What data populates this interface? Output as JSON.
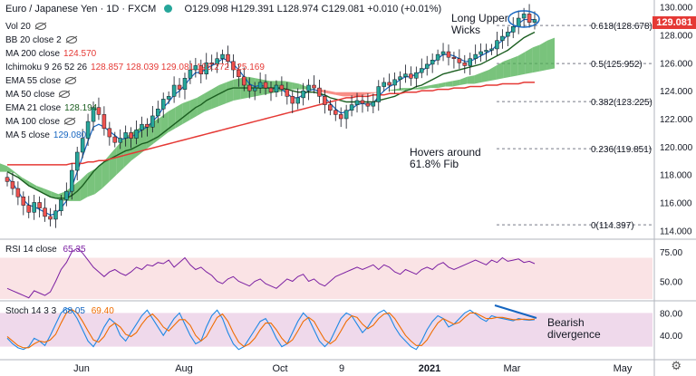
{
  "header": {
    "symbol": "Euro / Japanese Yen · 1D · FXCM",
    "ohlc": "O129.098 H129.391 L128.974 C129.081 +0.010 (+0.01%)"
  },
  "legend": [
    {
      "label": "Vol 20",
      "value": "",
      "color": "#131722",
      "hidden": true
    },
    {
      "label": "BB 20 close 2",
      "value": "",
      "color": "#131722",
      "hidden": true
    },
    {
      "label": "MA 200 close",
      "value": "124.570",
      "color": "#e53935",
      "hidden": false
    },
    {
      "label": "Ichimoku 9 26 52 26",
      "value": "128.857  128.039  129.081  126.272  125.169",
      "color": "#e53935",
      "hidden": false
    },
    {
      "label": "EMA 55 close",
      "value": "",
      "color": "#131722",
      "hidden": true
    },
    {
      "label": "MA 50 close",
      "value": "",
      "color": "#131722",
      "hidden": true
    },
    {
      "label": "EMA 21 close",
      "value": "128.194",
      "color": "#1b5e20",
      "hidden": false
    },
    {
      "label": "MA 100 close",
      "value": "",
      "color": "#131722",
      "hidden": true
    },
    {
      "label": "MA 5 close",
      "value": "129.080",
      "color": "#1565c0",
      "hidden": false
    }
  ],
  "annotations": {
    "upper_wicks": "Long Upper\nWicks",
    "fib_hover": "Hovers around\n61.8% Fib",
    "divergence": "Bearish\ndivergence"
  },
  "rsi_legend": {
    "label": "RSI 14 close",
    "value": "65.35"
  },
  "stoch_legend": {
    "label": "Stoch 14 3 3",
    "k": "68.05",
    "d": "69.40"
  },
  "price_tag": "129.081",
  "chart_data": {
    "type": "line",
    "title": "Euro / Japanese Yen · 1D · FXCM",
    "price_axis": {
      "min": 113.5,
      "max": 130.5,
      "ticks": [
        114,
        116,
        118,
        120,
        122,
        124,
        126,
        128,
        130
      ]
    },
    "rsi_axis": {
      "min": 35,
      "max": 85,
      "ticks": [
        50,
        75
      ],
      "bands": [
        30,
        70
      ]
    },
    "stoch_axis": {
      "min": 0,
      "max": 100,
      "ticks": [
        40,
        80
      ],
      "bands": [
        20,
        80
      ]
    },
    "x_labels": [
      "Jun",
      "Aug",
      "Oct",
      "9",
      "2021",
      "Mar",
      "May"
    ],
    "fib_levels": [
      {
        "ratio": "0.618",
        "price": 128.678
      },
      {
        "ratio": "0.5",
        "price": 125.952
      },
      {
        "ratio": "0.382",
        "price": 123.225
      },
      {
        "ratio": "0.236",
        "price": 119.851
      },
      {
        "ratio": "0",
        "price": 114.397
      }
    ],
    "price_series": [
      {
        "name": "Close",
        "values": [
          117.5,
          117.0,
          116.4,
          115.8,
          115.3,
          116.0,
          115.6,
          115.0,
          114.8,
          115.4,
          116.2,
          116.8,
          118.3,
          119.6,
          120.6,
          121.8,
          122.8,
          122.3,
          121.3,
          120.7,
          120.3,
          120.6,
          121.0,
          120.6,
          121.2,
          121.6,
          121.4,
          122.2,
          122.7,
          123.4,
          123.6,
          124.4,
          124.1,
          124.9,
          125.5,
          125.8,
          125.2,
          126.0,
          125.9,
          126.3,
          126.6,
          126.1,
          125.5,
          125.0,
          124.4,
          124.0,
          124.2,
          124.6,
          124.2,
          123.9,
          124.4,
          124.1,
          123.6,
          123.1,
          123.5,
          124.0,
          124.4,
          124.2,
          123.6,
          123.0,
          122.6,
          122.3,
          122.0,
          122.6,
          123.0,
          123.3,
          123.1,
          122.9,
          123.2,
          124.3,
          124.6,
          124.4,
          124.8,
          125.0,
          125.2,
          124.9,
          125.3,
          125.6,
          125.9,
          126.2,
          126.6,
          126.8,
          126.4,
          126.3,
          126.0,
          125.8,
          126.3,
          126.6,
          126.8,
          126.9,
          127.0,
          127.6,
          127.9,
          128.2,
          128.6,
          129.2,
          129.5,
          128.9,
          129.1
        ]
      },
      {
        "name": "MA 5",
        "values": [
          117.8,
          117.4,
          116.8,
          116.2,
          115.8,
          115.7,
          115.5,
          115.3,
          115.1,
          115.2,
          115.6,
          116.1,
          117.1,
          118.2,
          119.3,
          120.4,
          121.4,
          121.6,
          121.4,
          121.1,
          120.8,
          120.5,
          120.6,
          120.7,
          120.9,
          121.2,
          121.4,
          121.8,
          122.2,
          122.8,
          123.2,
          123.7,
          124.0,
          124.4,
          124.9,
          125.3,
          125.3,
          125.6,
          125.8,
          126.0,
          126.3,
          126.2,
          125.9,
          125.5,
          125.0,
          124.5,
          124.3,
          124.4,
          124.3,
          124.1,
          124.2,
          124.1,
          123.8,
          123.5,
          123.5,
          123.7,
          124.0,
          124.1,
          123.9,
          123.5,
          123.1,
          122.7,
          122.4,
          122.5,
          122.7,
          123.0,
          123.1,
          123.0,
          123.1,
          123.6,
          124.0,
          124.3,
          124.5,
          124.8,
          125.0,
          125.0,
          125.2,
          125.4,
          125.7,
          126.0,
          126.3,
          126.6,
          126.6,
          126.5,
          126.3,
          126.1,
          126.1,
          126.3,
          126.5,
          126.7,
          126.9,
          127.3,
          127.6,
          128.0,
          128.4,
          128.8,
          129.1,
          129.1,
          129.1
        ]
      },
      {
        "name": "EMA 21",
        "values": [
          118.2,
          118.0,
          117.8,
          117.5,
          117.2,
          117.0,
          116.8,
          116.6,
          116.4,
          116.3,
          116.3,
          116.3,
          116.5,
          116.8,
          117.2,
          117.7,
          118.2,
          118.6,
          118.9,
          119.1,
          119.3,
          119.5,
          119.7,
          119.8,
          120.0,
          120.2,
          120.3,
          120.5,
          120.7,
          121.0,
          121.3,
          121.6,
          121.9,
          122.2,
          122.5,
          122.8,
          123.0,
          123.3,
          123.5,
          123.7,
          123.9,
          124.1,
          124.2,
          124.2,
          124.2,
          124.2,
          124.2,
          124.2,
          124.2,
          124.2,
          124.2,
          124.2,
          124.1,
          124.0,
          123.9,
          123.9,
          123.9,
          123.9,
          123.8,
          123.7,
          123.5,
          123.4,
          123.3,
          123.2,
          123.2,
          123.2,
          123.2,
          123.2,
          123.2,
          123.3,
          123.4,
          123.5,
          123.6,
          123.8,
          124.0,
          124.1,
          124.3,
          124.4,
          124.6,
          124.8,
          125.0,
          125.2,
          125.3,
          125.4,
          125.5,
          125.6,
          125.7,
          125.8,
          125.9,
          126.1,
          126.3,
          126.5,
          126.7,
          126.9,
          127.2,
          127.5,
          127.8,
          128.0,
          128.2
        ]
      },
      {
        "name": "MA 200",
        "values": [
          118.7,
          118.7,
          118.7,
          118.7,
          118.7,
          118.7,
          118.7,
          118.7,
          118.7,
          118.7,
          118.7,
          118.7,
          118.8,
          118.8,
          118.8,
          118.9,
          118.9,
          119.0,
          119.0,
          119.1,
          119.2,
          119.3,
          119.4,
          119.5,
          119.6,
          119.7,
          119.8,
          119.9,
          120.0,
          120.1,
          120.2,
          120.3,
          120.4,
          120.5,
          120.6,
          120.7,
          120.8,
          120.9,
          121.0,
          121.1,
          121.2,
          121.3,
          121.4,
          121.5,
          121.6,
          121.7,
          121.8,
          121.9,
          122.0,
          122.1,
          122.2,
          122.3,
          122.4,
          122.5,
          122.6,
          122.7,
          122.8,
          122.9,
          123.0,
          123.1,
          123.2,
          123.3,
          123.4,
          123.5,
          123.5,
          123.6,
          123.6,
          123.6,
          123.7,
          123.7,
          123.7,
          123.8,
          123.8,
          123.8,
          123.9,
          123.9,
          123.9,
          124.0,
          124.0,
          124.0,
          124.1,
          124.1,
          124.1,
          124.2,
          124.2,
          124.2,
          124.3,
          124.3,
          124.3,
          124.4,
          124.4,
          124.4,
          124.5,
          124.5,
          124.5,
          124.5,
          124.6,
          124.6,
          124.6
        ]
      }
    ],
    "cloud": {
      "span_a": [
        118.8,
        118.6,
        118.2,
        117.8,
        117.5,
        117.2,
        117.0,
        116.8,
        116.6,
        116.8,
        117.2,
        117.6,
        118.1,
        118.4,
        118.8,
        119.4,
        120.0,
        120.6,
        121.0,
        121.3,
        121.5,
        121.8,
        122.1,
        122.5,
        122.8,
        123.1,
        123.3,
        123.5,
        123.8,
        124.1,
        124.4,
        124.6,
        124.8,
        124.9,
        125.0,
        124.9,
        124.8,
        124.7,
        124.7,
        124.7,
        124.6,
        124.5,
        124.3,
        124.1,
        123.9,
        123.8,
        123.7,
        123.6,
        123.6,
        123.6,
        123.7,
        123.8,
        123.9,
        124.0,
        124.1,
        124.2,
        124.2,
        124.2,
        124.3,
        124.4,
        124.5,
        124.6,
        124.7,
        124.8,
        125.0,
        125.1,
        125.3,
        125.5,
        125.8,
        126.1,
        126.3,
        126.5,
        126.8,
        127.1,
        127.3,
        127.6,
        127.8
      ],
      "span_b": [
        118.2,
        118.2,
        118.1,
        117.6,
        117.2,
        116.9,
        116.6,
        116.4,
        116.2,
        116.1,
        116.1,
        116.1,
        116.4,
        116.6,
        117.0,
        117.5,
        118.0,
        118.5,
        119.0,
        119.4,
        119.8,
        120.2,
        120.6,
        121.0,
        121.3,
        121.6,
        121.9,
        122.2,
        122.5,
        122.7,
        122.9,
        123.1,
        123.3,
        123.4,
        123.5,
        123.6,
        123.7,
        123.8,
        123.9,
        124.0,
        124.1,
        124.1,
        124.1,
        124.1,
        124.1,
        124.0,
        123.9,
        123.9,
        123.9,
        123.9,
        123.9,
        123.9,
        123.9,
        124.0,
        124.0,
        124.0,
        124.1,
        124.1,
        124.1,
        124.2,
        124.2,
        124.3,
        124.3,
        124.4,
        124.5,
        124.5,
        124.6,
        124.7,
        124.8,
        124.9,
        125.0,
        125.1,
        125.2,
        125.3,
        125.4,
        125.5,
        125.6
      ]
    },
    "rsi_series": {
      "name": "RSI 14",
      "values": [
        44,
        42,
        40,
        38,
        36,
        42,
        40,
        38,
        41,
        50,
        60,
        66,
        75,
        78,
        74,
        68,
        62,
        58,
        54,
        58,
        60,
        57,
        55,
        58,
        62,
        60,
        64,
        63,
        66,
        65,
        68,
        62,
        66,
        70,
        64,
        60,
        62,
        58,
        55,
        50,
        48,
        52,
        54,
        50,
        48,
        46,
        50,
        52,
        48,
        46,
        44,
        48,
        52,
        50,
        54,
        56,
        50,
        52,
        48,
        46,
        50,
        54,
        56,
        58,
        60,
        62,
        60,
        62,
        64,
        60,
        64,
        62,
        58,
        56,
        60,
        58,
        56,
        60,
        62,
        60,
        64,
        66,
        62,
        60,
        62,
        64,
        66,
        68,
        66,
        64,
        68,
        66,
        70,
        67,
        68,
        69,
        66,
        67,
        65
      ]
    },
    "stoch_series": [
      {
        "name": "%K",
        "values": [
          35,
          25,
          18,
          15,
          20,
          35,
          30,
          22,
          40,
          60,
          80,
          88,
          85,
          70,
          50,
          30,
          20,
          35,
          55,
          70,
          62,
          40,
          30,
          45,
          60,
          75,
          85,
          70,
          55,
          40,
          55,
          70,
          80,
          60,
          40,
          25,
          30,
          55,
          75,
          85,
          70,
          45,
          25,
          15,
          20,
          35,
          50,
          65,
          70,
          55,
          35,
          20,
          25,
          45,
          65,
          80,
          70,
          50,
          30,
          20,
          30,
          50,
          70,
          80,
          75,
          60,
          45,
          55,
          70,
          80,
          85,
          75,
          55,
          40,
          30,
          20,
          15,
          30,
          50,
          65,
          75,
          70,
          55,
          60,
          70,
          80,
          85,
          78,
          70,
          65,
          75,
          72,
          70,
          68,
          66,
          70,
          68,
          67,
          68
        ]
      },
      {
        "name": "%D",
        "values": [
          38,
          30,
          22,
          18,
          18,
          25,
          30,
          28,
          32,
          42,
          62,
          80,
          86,
          80,
          65,
          48,
          32,
          28,
          38,
          55,
          62,
          55,
          42,
          38,
          45,
          60,
          72,
          78,
          68,
          55,
          48,
          58,
          68,
          68,
          58,
          40,
          30,
          38,
          55,
          72,
          78,
          65,
          45,
          28,
          20,
          25,
          35,
          50,
          62,
          62,
          50,
          35,
          25,
          32,
          48,
          65,
          72,
          65,
          48,
          32,
          25,
          32,
          48,
          65,
          75,
          72,
          60,
          52,
          58,
          70,
          78,
          80,
          70,
          55,
          40,
          30,
          22,
          22,
          32,
          48,
          62,
          70,
          65,
          60,
          63,
          72,
          80,
          80,
          75,
          70,
          70,
          72,
          72,
          70,
          68,
          68,
          69,
          68,
          69
        ]
      }
    ]
  }
}
